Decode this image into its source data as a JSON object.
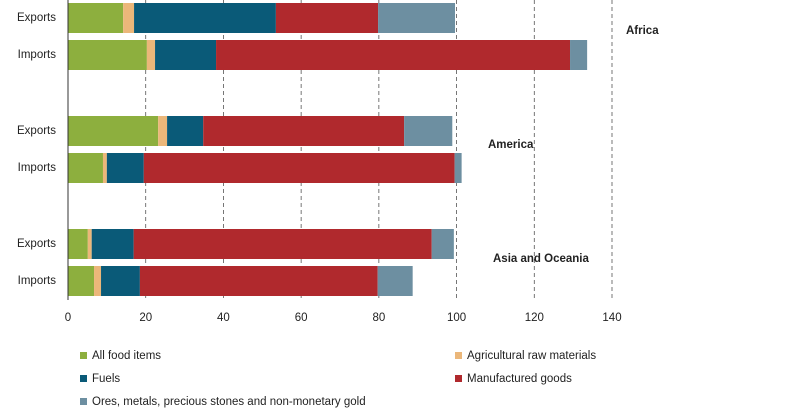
{
  "chart_data": {
    "type": "stacked-bar-horizontal",
    "groups": [
      "Africa",
      "America",
      "Asia and Oceania"
    ],
    "categories": [
      "Exports",
      "Imports",
      "Exports",
      "Imports",
      "Exports",
      "Imports"
    ],
    "series": [
      {
        "name": "All food items",
        "color": "#8daf3e",
        "values": [
          14.2,
          20.3,
          23.2,
          9.0,
          5.1,
          6.7
        ]
      },
      {
        "name": "Agricultural raw materials",
        "color": "#ebb77a",
        "values": [
          2.8,
          2.1,
          2.3,
          1.0,
          1.0,
          1.8
        ]
      },
      {
        "name": "Fuels",
        "color": "#0a5a78",
        "values": [
          36.5,
          15.7,
          9.3,
          9.5,
          10.8,
          10.0
        ]
      },
      {
        "name": "Manufactured goods",
        "color": "#b0292d",
        "values": [
          26.3,
          91.1,
          51.7,
          80.0,
          76.7,
          61.2
        ]
      },
      {
        "name": "Ores, metals, precious stones and non-monetary gold",
        "color": "#6d8fa1",
        "values": [
          19.8,
          4.4,
          12.4,
          1.8,
          5.7,
          9.0
        ]
      }
    ],
    "xlim": [
      0,
      140
    ],
    "xticks": [
      0,
      20,
      40,
      60,
      80,
      100,
      120,
      140
    ],
    "grid": true
  }
}
